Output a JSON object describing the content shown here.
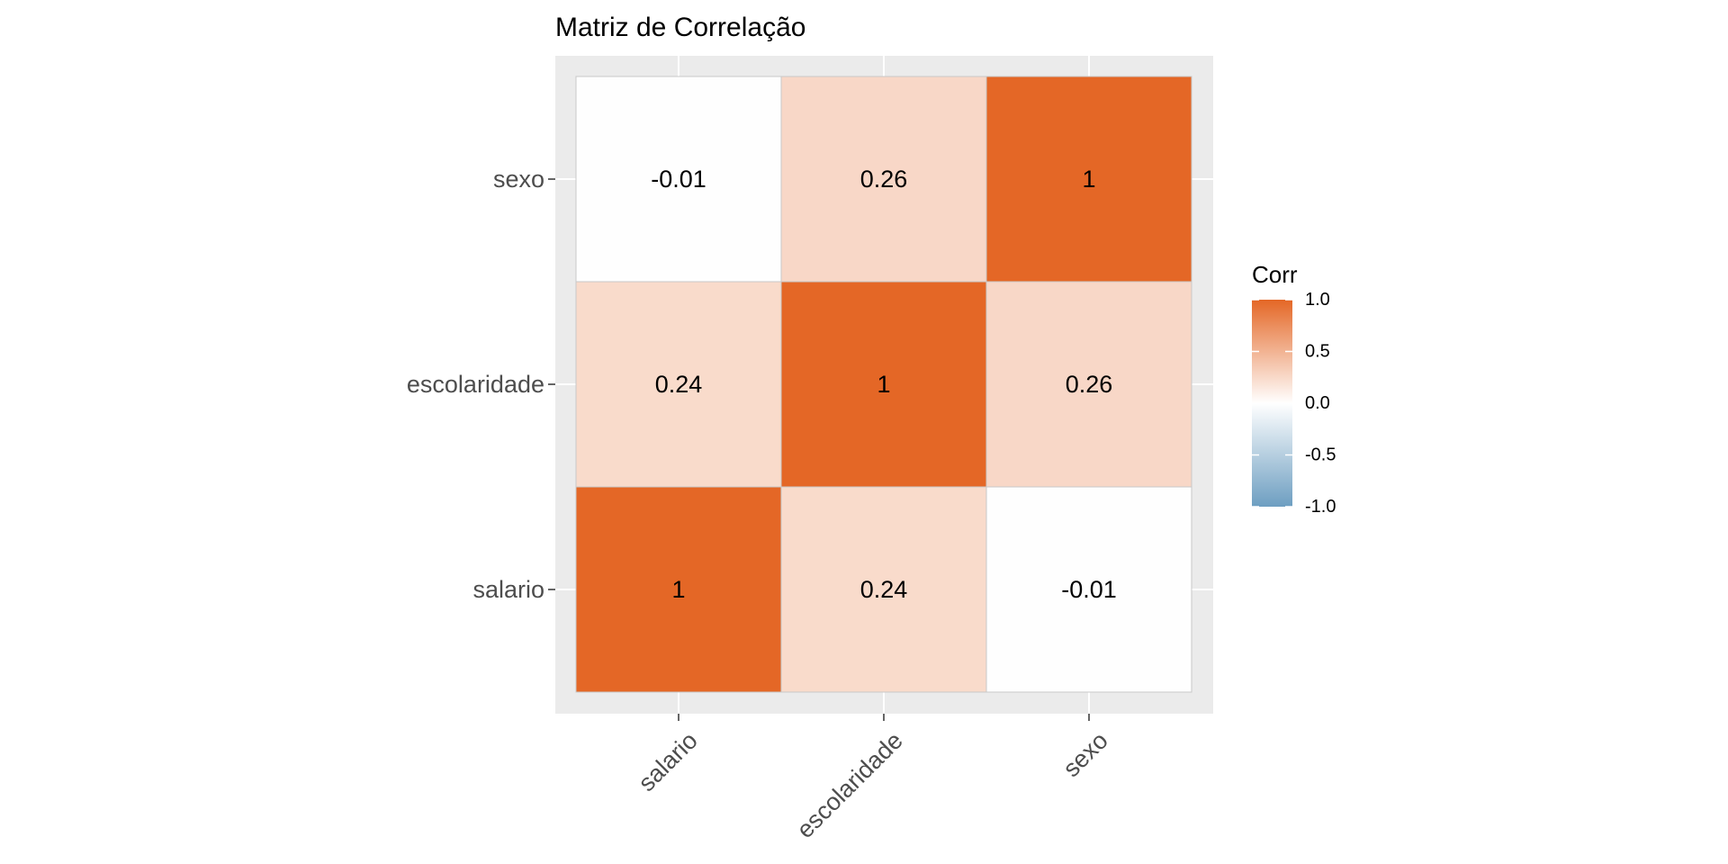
{
  "chart_data": {
    "type": "heatmap",
    "title": "Matriz de Correlação",
    "x_categories": [
      "salario",
      "escolaridade",
      "sexo"
    ],
    "y_categories": [
      "salario",
      "escolaridade",
      "sexo"
    ],
    "matrix": [
      [
        1,
        0.24,
        -0.01
      ],
      [
        0.24,
        1,
        0.26
      ],
      [
        -0.01,
        0.26,
        1
      ]
    ],
    "cell_labels": [
      [
        "1",
        "0.24",
        "-0.01"
      ],
      [
        "0.24",
        "1",
        "0.26"
      ],
      [
        "-0.01",
        "0.26",
        "1"
      ]
    ],
    "legend": {
      "title": "Corr",
      "range": [
        -1,
        1
      ],
      "ticks": [
        1.0,
        0.5,
        0.0,
        -0.5,
        -1.0
      ],
      "tick_labels": [
        "1.0",
        "0.5",
        "0.0",
        "-0.5",
        "-1.0"
      ],
      "placement": "right"
    },
    "colors": {
      "high": "#E46726",
      "mid": "#FFFFFF",
      "low": "#6D9EC1",
      "panel_background": "#EBEBEB",
      "grid": "#FFFFFF",
      "cell_border": "#C8C8C8"
    },
    "grid": true
  }
}
